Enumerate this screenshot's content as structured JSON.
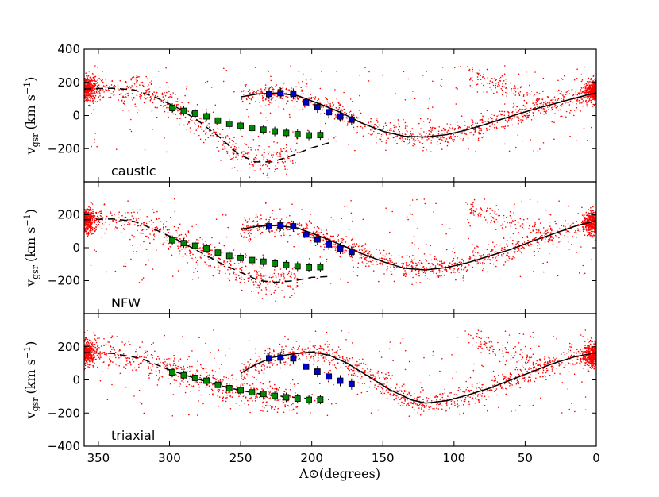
{
  "chart_data": {
    "type": "scatter",
    "xlabel": "Λ⊙(degrees)",
    "ylabel": "v_gsr (km s⁻¹)",
    "ylabel_main": "v",
    "ylabel_sub": "gsr",
    "ylabel_units": "(km s",
    "ylabel_exp": "−1",
    "ylabel_close": ")",
    "xlim": [
      360,
      0
    ],
    "ylim": [
      -400,
      400
    ],
    "x_ticks": [
      350,
      300,
      250,
      200,
      150,
      100,
      50,
      0
    ],
    "y_ticks_top": [
      400,
      200,
      0,
      -200
    ],
    "y_ticks_mid": [
      200,
      0,
      -200
    ],
    "y_ticks_bottom": [
      200,
      0,
      -200,
      -400
    ],
    "panels": [
      {
        "label": "caustic",
        "model_solid": [
          [
            250,
            112
          ],
          [
            238,
            130
          ],
          [
            225,
            135
          ],
          [
            210,
            120
          ],
          [
            195,
            72
          ],
          [
            180,
            20
          ],
          [
            165,
            -45
          ],
          [
            150,
            -95
          ],
          [
            135,
            -125
          ],
          [
            120,
            -130
          ],
          [
            105,
            -115
          ],
          [
            90,
            -85
          ],
          [
            75,
            -45
          ],
          [
            60,
            -5
          ],
          [
            45,
            35
          ],
          [
            30,
            70
          ],
          [
            15,
            105
          ],
          [
            0,
            138
          ]
        ],
        "model_dashed": [
          [
            360,
            160
          ],
          [
            340,
            165
          ],
          [
            325,
            155
          ],
          [
            310,
            110
          ],
          [
            295,
            50
          ],
          [
            280,
            -30
          ],
          [
            265,
            -130
          ],
          [
            252,
            -230
          ],
          [
            240,
            -280
          ],
          [
            228,
            -280
          ],
          [
            215,
            -245
          ],
          [
            200,
            -195
          ],
          [
            188,
            -165
          ]
        ],
        "blue_points": [
          [
            230,
            130
          ],
          [
            222,
            135
          ],
          [
            213,
            130
          ],
          [
            204,
            80
          ],
          [
            196,
            50
          ],
          [
            188,
            20
          ],
          [
            180,
            -5
          ],
          [
            172,
            -25
          ]
        ],
        "green_points": [
          [
            298,
            45
          ],
          [
            290,
            28
          ],
          [
            282,
            12
          ],
          [
            274,
            -5
          ],
          [
            266,
            -30
          ],
          [
            258,
            -50
          ],
          [
            250,
            -62
          ],
          [
            242,
            -75
          ],
          [
            234,
            -85
          ],
          [
            226,
            -96
          ],
          [
            218,
            -105
          ],
          [
            210,
            -113
          ],
          [
            202,
            -120
          ],
          [
            194,
            -118
          ]
        ]
      },
      {
        "label": "NFW",
        "model_solid": [
          [
            250,
            112
          ],
          [
            238,
            130
          ],
          [
            225,
            135
          ],
          [
            210,
            120
          ],
          [
            195,
            72
          ],
          [
            180,
            20
          ],
          [
            165,
            -35
          ],
          [
            150,
            -85
          ],
          [
            135,
            -125
          ],
          [
            120,
            -135
          ],
          [
            105,
            -120
          ],
          [
            90,
            -90
          ],
          [
            75,
            -50
          ],
          [
            60,
            -10
          ],
          [
            45,
            40
          ],
          [
            30,
            85
          ],
          [
            15,
            130
          ],
          [
            0,
            165
          ]
        ],
        "model_dashed": [
          [
            360,
            170
          ],
          [
            340,
            175
          ],
          [
            325,
            160
          ],
          [
            310,
            110
          ],
          [
            295,
            50
          ],
          [
            280,
            -20
          ],
          [
            265,
            -90
          ],
          [
            250,
            -150
          ],
          [
            237,
            -200
          ],
          [
            225,
            -210
          ],
          [
            212,
            -200
          ],
          [
            200,
            -180
          ],
          [
            188,
            -175
          ]
        ],
        "blue_points": [
          [
            230,
            130
          ],
          [
            222,
            135
          ],
          [
            213,
            130
          ],
          [
            204,
            80
          ],
          [
            196,
            50
          ],
          [
            188,
            20
          ],
          [
            180,
            -5
          ],
          [
            172,
            -25
          ]
        ],
        "green_points": [
          [
            298,
            45
          ],
          [
            290,
            28
          ],
          [
            282,
            12
          ],
          [
            274,
            -5
          ],
          [
            266,
            -30
          ],
          [
            258,
            -50
          ],
          [
            250,
            -62
          ],
          [
            242,
            -75
          ],
          [
            234,
            -85
          ],
          [
            226,
            -96
          ],
          [
            218,
            -105
          ],
          [
            210,
            -113
          ],
          [
            202,
            -120
          ],
          [
            194,
            -118
          ]
        ]
      },
      {
        "label": "triaxial",
        "model_solid": [
          [
            250,
            40
          ],
          [
            240,
            90
          ],
          [
            228,
            135
          ],
          [
            215,
            155
          ],
          [
            200,
            168
          ],
          [
            188,
            150
          ],
          [
            175,
            100
          ],
          [
            160,
            20
          ],
          [
            145,
            -60
          ],
          [
            130,
            -120
          ],
          [
            120,
            -140
          ],
          [
            105,
            -125
          ],
          [
            90,
            -90
          ],
          [
            75,
            -50
          ],
          [
            60,
            0
          ],
          [
            45,
            50
          ],
          [
            30,
            100
          ],
          [
            15,
            140
          ],
          [
            0,
            165
          ]
        ],
        "model_dashed": [
          [
            360,
            165
          ],
          [
            340,
            160
          ],
          [
            320,
            130
          ],
          [
            300,
            60
          ],
          [
            280,
            5
          ],
          [
            260,
            -45
          ],
          [
            240,
            -80
          ],
          [
            220,
            -100
          ],
          [
            205,
            -110
          ],
          [
            188,
            -118
          ]
        ],
        "blue_points": [
          [
            230,
            130
          ],
          [
            222,
            135
          ],
          [
            213,
            130
          ],
          [
            204,
            80
          ],
          [
            196,
            50
          ],
          [
            188,
            20
          ],
          [
            180,
            -5
          ],
          [
            172,
            -25
          ]
        ],
        "green_points": [
          [
            298,
            45
          ],
          [
            290,
            28
          ],
          [
            282,
            12
          ],
          [
            274,
            -5
          ],
          [
            266,
            -30
          ],
          [
            258,
            -50
          ],
          [
            250,
            -62
          ],
          [
            242,
            -75
          ],
          [
            234,
            -85
          ],
          [
            226,
            -96
          ],
          [
            218,
            -105
          ],
          [
            210,
            -113
          ],
          [
            202,
            -120
          ],
          [
            194,
            -118
          ]
        ]
      }
    ],
    "colors": {
      "scatter": "#ff0000",
      "blue_marker": "#0000cc",
      "green_marker": "#008800",
      "model_line": "#000000"
    }
  }
}
